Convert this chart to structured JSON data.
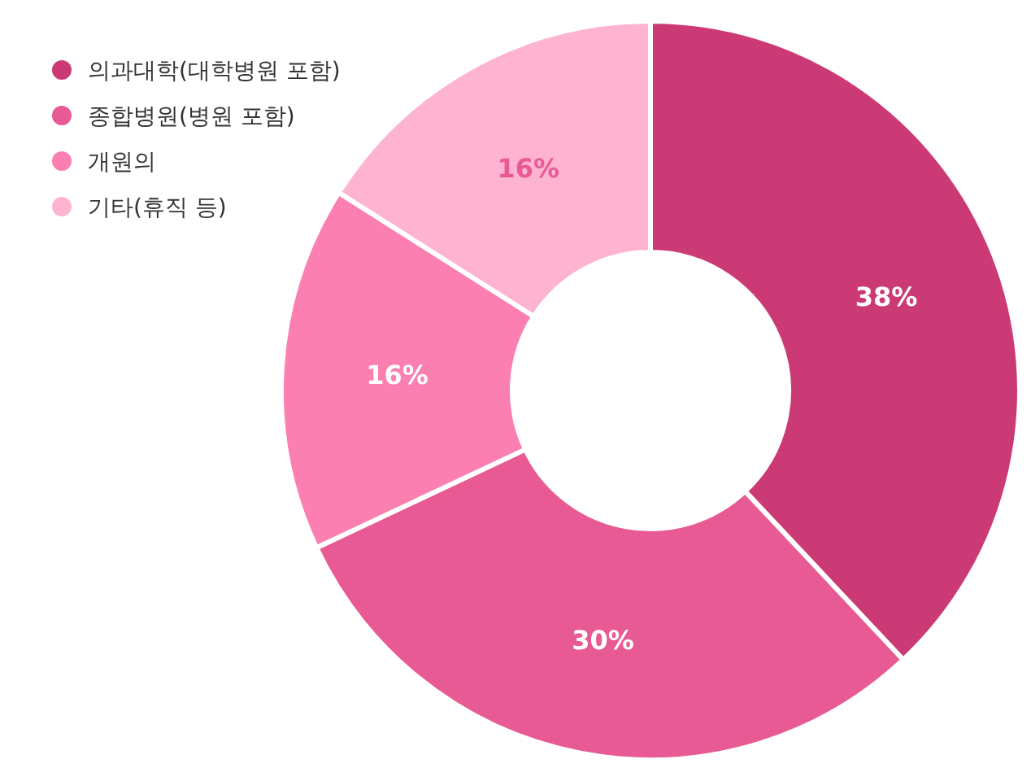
{
  "chart_data": {
    "type": "donut",
    "categories": [
      "의과대학(대학병원 포함)",
      "종합병원(병원 포함)",
      "개원의",
      "기타(휴직 등)"
    ],
    "values": [
      38,
      30,
      16,
      16
    ],
    "colors": [
      "#cc3a75",
      "#e85a93",
      "#fb7fb0",
      "#feb3d0"
    ],
    "value_labels": [
      "38%",
      "30%",
      "16%",
      "16%"
    ],
    "legend": "top left"
  }
}
